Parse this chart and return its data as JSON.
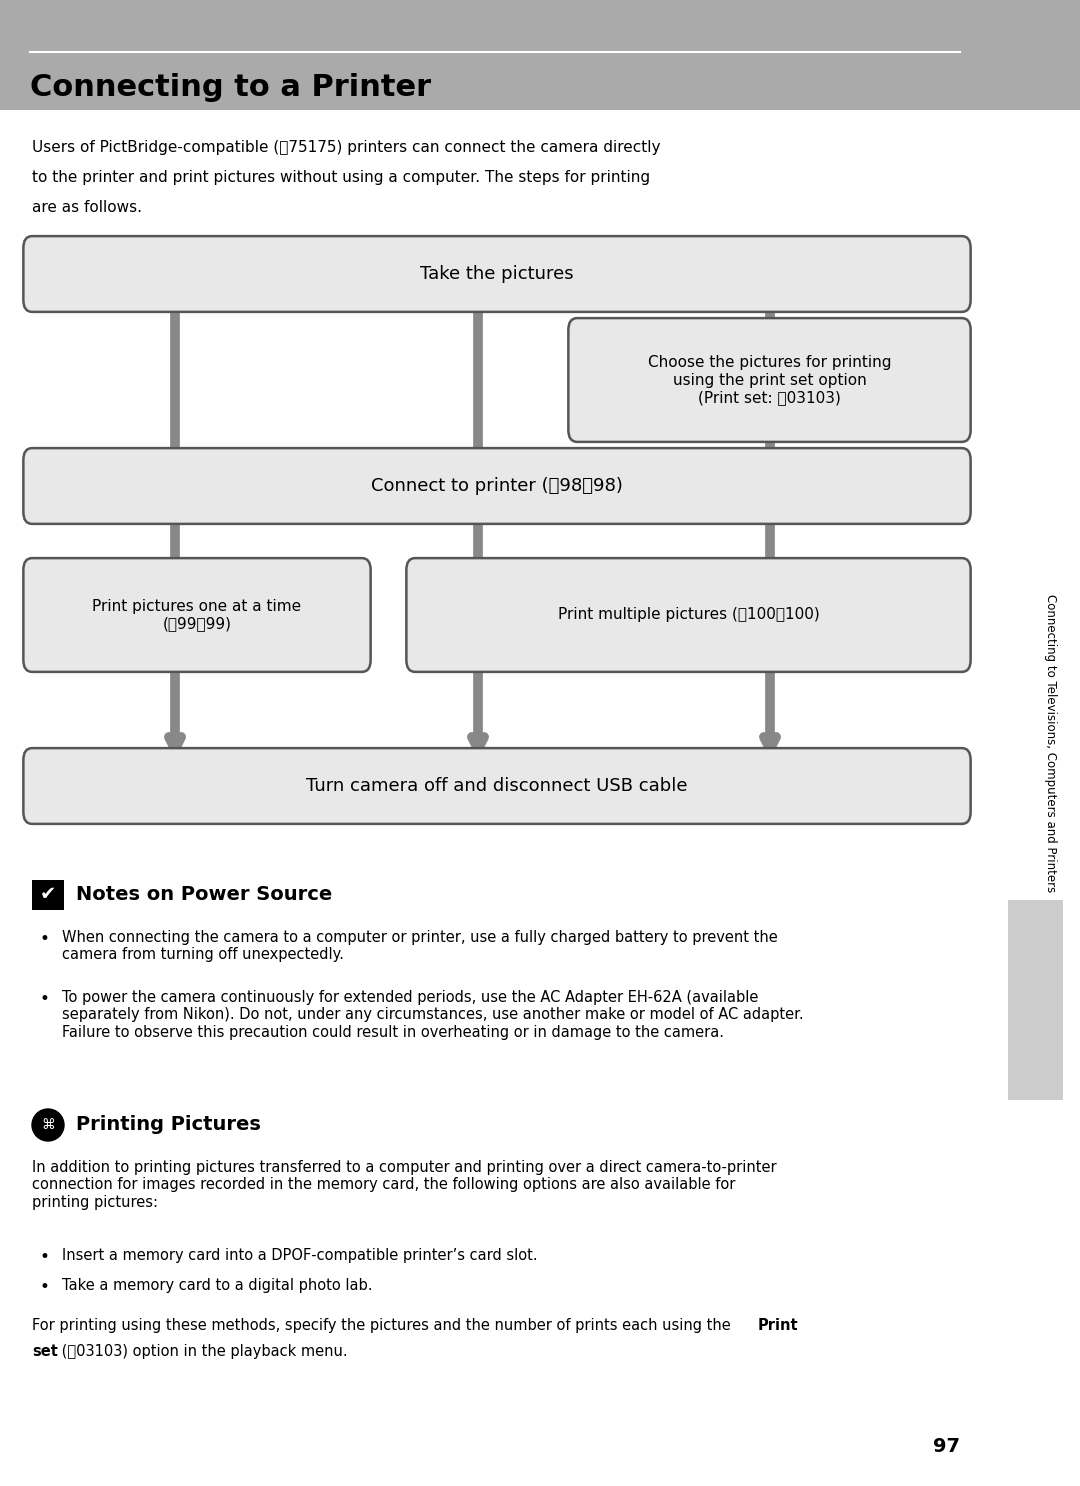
{
  "title": "Connecting to a Printer",
  "bg_color": "#ffffff",
  "header_bg": "#aaaaaa",
  "box_bg": "#e8e8e8",
  "box_border": "#555555",
  "arrow_color": "#888888",
  "sidebar_text": "Connecting to Televisions, Computers and Printers",
  "sidebar_bg": "#cccccc",
  "page_number": "97",
  "notes_title": "Notes on Power Source",
  "notes_bullet1": "When connecting the camera to a computer or printer, use a fully charged battery to prevent the camera from turning off unexpectedly.",
  "notes_bullet2": "To power the camera continuously for extended periods, use the AC Adapter EH-62A (available separately from Nikon). Do not, under any circumstances, use another make or model of AC adapter. Failure to observe this precaution could result in overheating or in damage to the camera.",
  "printing_title": "Printing Pictures",
  "printing_para": "In addition to printing pictures transferred to a computer and printing over a direct camera-to-printer connection for images recorded in the memory card, the following options are also available for printing pictures:",
  "printing_b1": "Insert a memory card into a DPOF-compatible printer’s card slot.",
  "printing_b2": "Take a memory card to a digital photo lab.",
  "printing_footer1": "For printing using these methods, specify the pictures and the number of prints each using the ",
  "printing_footer_bold": "Print",
  "printing_footer2": "set",
  "printing_footer3": " (⎈03) option in the playback menu.",
  "lc_icon": "⎈03",
  "lc_175": "⎈75",
  "lc_98": "⎈98",
  "lc_99": "⎈99",
  "lc_100": "⎈100",
  "lc_103": "⎈03"
}
